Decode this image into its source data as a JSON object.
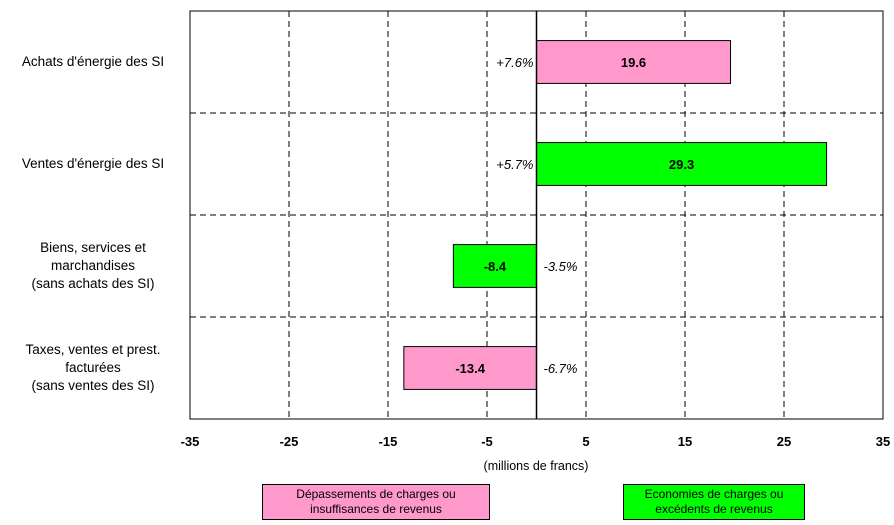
{
  "chart_data": {
    "type": "bar",
    "orientation": "horizontal",
    "categories": [
      "Achats d'énergie des SI",
      "Ventes d'énergie des SI",
      "Biens, services et\nmarchandises\n(sans achats des SI)",
      "Taxes, ventes et prest.\nfacturées\n(sans ventes des SI)"
    ],
    "values": [
      19.6,
      29.3,
      -8.4,
      -13.4
    ],
    "value_labels": [
      "19.6",
      "29.3",
      "-8.4",
      "-13.4"
    ],
    "percent_labels": [
      "+7.6%",
      "+5.7%",
      "-3.5%",
      "-6.7%"
    ],
    "bar_colors": [
      "#ff99cc",
      "#00ff00",
      "#00ff00",
      "#ff99cc"
    ],
    "xlim": [
      -35,
      35
    ],
    "xticks": [
      -35,
      -25,
      -15,
      -5,
      5,
      15,
      25,
      35
    ],
    "xlabel": "(millions de francs)",
    "grid": true,
    "legend_position": "bottom",
    "legend": [
      {
        "label": "Dépassements de charges ou\ninsuffisances de revenus",
        "color": "#ff99cc"
      },
      {
        "label": "Economies de charges ou\nexcédents de revenus",
        "color": "#00ff00"
      }
    ]
  }
}
